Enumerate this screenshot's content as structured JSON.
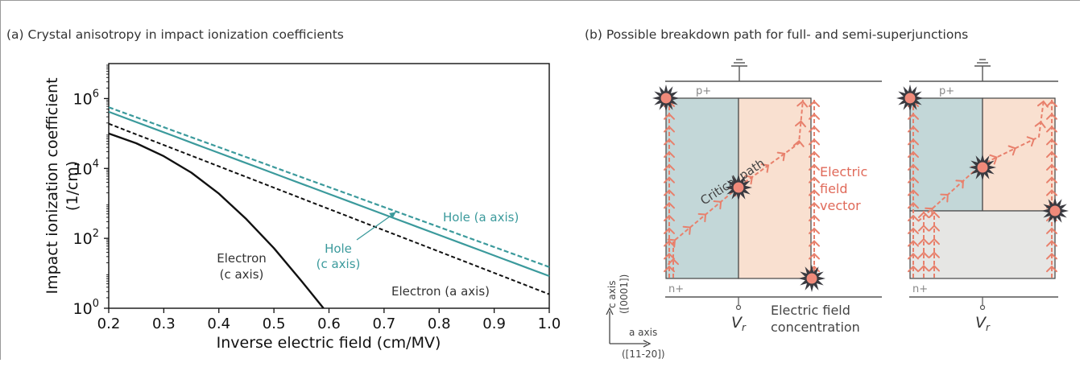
{
  "panel_a": {
    "title": "(a) Crystal anisotropy in impact ionization coefficients"
  },
  "panel_b": {
    "title": "(b) Possible breakdown path for full- and semi-superjunctions",
    "labels": {
      "p_plus": "p+",
      "n_plus": "n+",
      "critical_path": "Critical path",
      "field_vector_1": "Electric",
      "field_vector_2": "field",
      "field_vector_3": "vector",
      "concentration_1": "Electric field",
      "concentration_2": "concentration",
      "vr": "V",
      "vr_sub": "r",
      "c_axis_1": "c axis",
      "c_axis_2": "([0001])",
      "a_axis_1": "a axis",
      "a_axis_2": "([11-20])"
    },
    "colors": {
      "p_region": "#f9e0d0",
      "n_region": "#c3d7d8",
      "neutral_region": "#e6e6e4",
      "field_arrow": "#e8806c",
      "star_fill": "#3a3a40",
      "star_core": "#f08a7a"
    }
  },
  "chart_data": {
    "type": "line",
    "xlabel": "Inverse electric field (cm/MV)",
    "ylabel_1": "Impact ionization coefficient",
    "ylabel_2": "(1/cm)",
    "xlim": [
      0.2,
      1.0
    ],
    "ylog": true,
    "ylim_exp": [
      0,
      7
    ],
    "xticks": [
      "0.2",
      "0.3",
      "0.4",
      "0.5",
      "0.6",
      "0.7",
      "0.8",
      "0.9",
      "1.0"
    ],
    "ytick_exps": [
      0,
      2,
      4,
      6
    ],
    "ytick_base": "10",
    "grid": false,
    "series": [
      {
        "key": "hole_a",
        "color": "#3b9a9c",
        "dash": "6,3",
        "width": 2.2,
        "x": [
          0.2,
          1.0
        ],
        "log10_y": [
          5.75,
          1.18
        ]
      },
      {
        "key": "hole_c",
        "color": "#3b9a9c",
        "dash": "",
        "width": 2.2,
        "x": [
          0.2,
          1.0
        ],
        "log10_y": [
          5.62,
          0.92
        ]
      },
      {
        "key": "electron_a",
        "color": "#111111",
        "dash": "5,3",
        "width": 2.0,
        "x": [
          0.2,
          1.0
        ],
        "log10_y": [
          5.28,
          0.4
        ]
      },
      {
        "key": "electron_c",
        "color": "#111111",
        "dash": "",
        "width": 2.4,
        "x": [
          0.2,
          0.25,
          0.3,
          0.35,
          0.4,
          0.45,
          0.5,
          0.55,
          0.59
        ],
        "log10_y": [
          5.0,
          4.72,
          4.35,
          3.88,
          3.28,
          2.55,
          1.72,
          0.78,
          0.0
        ]
      }
    ],
    "annotations": {
      "hole_a_label": "Hole (a axis)",
      "hole_c_label_1": "Hole",
      "hole_c_label_2": "(c axis)",
      "electron_c_label_1": "Electron",
      "electron_c_label_2": "(c axis)",
      "electron_a_label": "Electron (a axis)"
    }
  }
}
